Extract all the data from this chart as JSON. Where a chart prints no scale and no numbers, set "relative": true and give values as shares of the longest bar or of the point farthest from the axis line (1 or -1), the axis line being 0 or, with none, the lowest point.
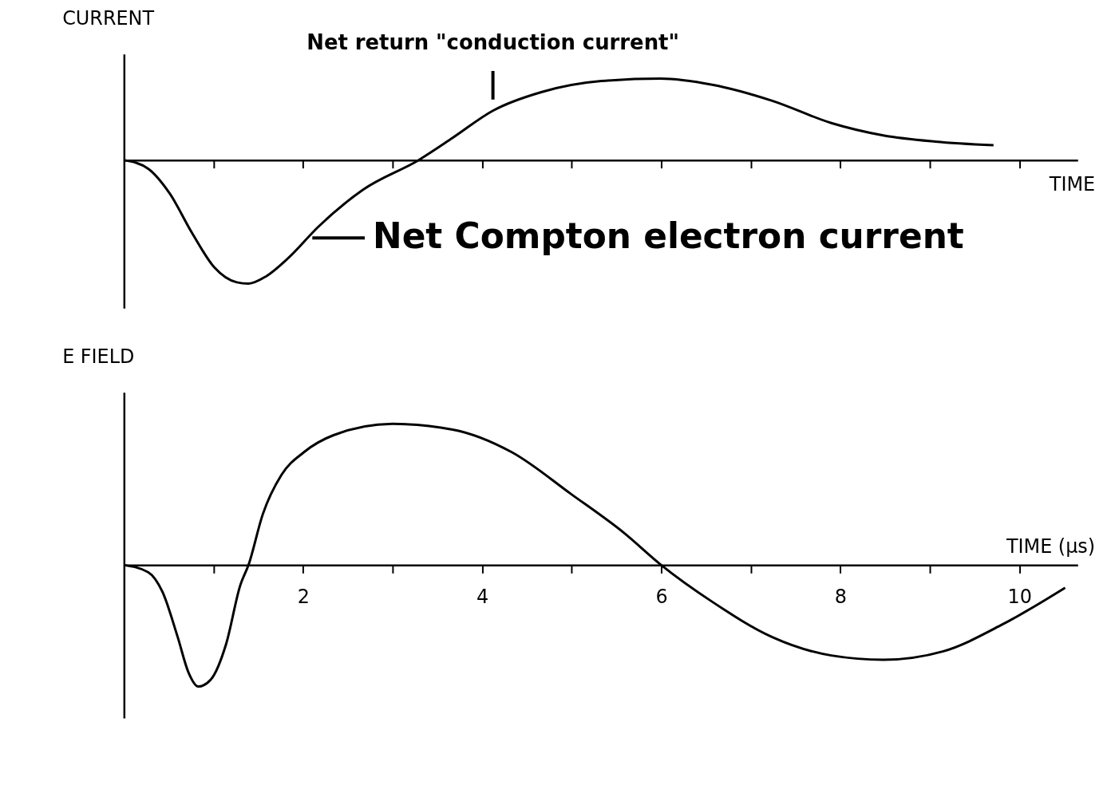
{
  "chart_data": [
    {
      "type": "line",
      "relative": true,
      "ylabel": "CURRENT",
      "xlabel": "TIME",
      "xlim": [
        0,
        10.65
      ],
      "xticks": [
        {
          "value": 1,
          "label": null
        },
        {
          "value": 2,
          "label": null
        },
        {
          "value": 3,
          "label": null
        },
        {
          "value": 4,
          "label": null
        },
        {
          "value": 5,
          "label": null
        },
        {
          "value": 6,
          "label": null
        },
        {
          "value": 7,
          "label": null
        },
        {
          "value": 8,
          "label": null
        },
        {
          "value": 9,
          "label": null
        },
        {
          "value": 10,
          "label": null
        }
      ],
      "tick_labels": false,
      "grid": false,
      "line_style": "solid",
      "marker": "none",
      "annotations": [
        {
          "text": "Net return \"conduction current\"",
          "x": 4.12,
          "y": 0.4
        },
        {
          "text": "Net Compton electron current",
          "x": 2.05,
          "y": -0.63
        }
      ],
      "series": [
        {
          "color": "#000000",
          "x": [
            0,
            0.27,
            0.51,
            0.76,
            1.01,
            1.26,
            1.39,
            1.59,
            1.84,
            2.17,
            2.67,
            3.29,
            3.67,
            4.12,
            4.66,
            5.33,
            5.99,
            6.57,
            7.24,
            7.9,
            8.48,
            9.06,
            9.71
          ],
          "values": [
            0,
            -0.07,
            -0.27,
            -0.59,
            -0.87,
            -0.99,
            -1,
            -0.94,
            -0.79,
            -0.54,
            -0.24,
            0,
            0.18,
            0.4,
            0.55,
            0.64,
            0.66,
            0.61,
            0.48,
            0.3,
            0.2,
            0.15,
            0.12
          ]
        }
      ]
    },
    {
      "type": "line",
      "relative": true,
      "ylabel": "E FIELD",
      "xlabel": "TIME (µs)",
      "xlim": [
        0,
        10.65
      ],
      "xticks": [
        {
          "value": 1,
          "label": null
        },
        2,
        {
          "value": 3,
          "label": null
        },
        4,
        {
          "value": 5,
          "label": null
        },
        6,
        {
          "value": 7,
          "label": null
        },
        8,
        {
          "value": 9,
          "label": null
        },
        10
      ],
      "tick_labels": "x",
      "grid": false,
      "line_style": "solid",
      "marker": "none",
      "series": [
        {
          "color": "#000000",
          "x": [
            0,
            0.27,
            0.43,
            0.6,
            0.72,
            0.83,
            0.97,
            1.14,
            1.3,
            1.39,
            1.55,
            1.76,
            2.01,
            2.34,
            3.0,
            3.67,
            4.33,
            5.0,
            5.58,
            6.0,
            6.57,
            7.24,
            7.9,
            8.48,
            9.15,
            9.81,
            10.51
          ],
          "values": [
            0,
            -0.05,
            -0.19,
            -0.51,
            -0.76,
            -0.86,
            -0.81,
            -0.56,
            -0.14,
            0,
            0.36,
            0.64,
            0.8,
            0.92,
            1,
            0.96,
            0.8,
            0.5,
            0.23,
            0,
            -0.26,
            -0.51,
            -0.64,
            -0.67,
            -0.61,
            -0.42,
            -0.16
          ]
        }
      ]
    }
  ]
}
